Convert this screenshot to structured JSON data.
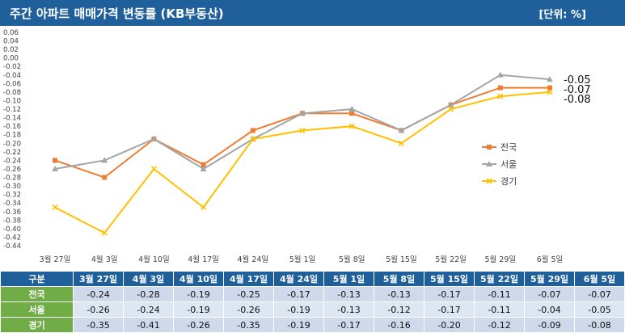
{
  "header": {
    "title": "주간 아파트 매매가격 변동률 (KB부동산)",
    "unit": "[단위: %]"
  },
  "chart_data": {
    "type": "line",
    "categories": [
      "3월 27일",
      "4월 3일",
      "4월 10일",
      "4월 17일",
      "4월 24일",
      "5월 1일",
      "5월 8일",
      "5월 15일",
      "5월 22일",
      "5월 29일",
      "6월 5일"
    ],
    "series": [
      {
        "name": "전국",
        "color": "#ed7d31",
        "marker": "square",
        "values": [
          -0.24,
          -0.28,
          -0.19,
          -0.25,
          -0.17,
          -0.13,
          -0.13,
          -0.17,
          -0.11,
          -0.07,
          -0.07
        ]
      },
      {
        "name": "서울",
        "color": "#a5a5a5",
        "marker": "triangle",
        "values": [
          -0.26,
          -0.24,
          -0.19,
          -0.26,
          -0.19,
          -0.13,
          -0.12,
          -0.17,
          -0.11,
          -0.04,
          -0.05
        ]
      },
      {
        "name": "경기",
        "color": "#ffc000",
        "marker": "x",
        "values": [
          -0.35,
          -0.41,
          -0.26,
          -0.35,
          -0.19,
          -0.17,
          -0.16,
          -0.2,
          -0.12,
          -0.09,
          -0.08
        ]
      }
    ],
    "ylim": [
      -0.44,
      0.06
    ],
    "ytick_step": 0.02,
    "end_labels": [
      "-0.05",
      "-0.07",
      "-0.08"
    ],
    "grid": false,
    "legend_position": "right"
  },
  "table": {
    "header_label": "구분",
    "columns": [
      "3월 27일",
      "4월 3일",
      "4월 10일",
      "4월 17일",
      "4월 24일",
      "5월 1일",
      "5월 8일",
      "5월 15일",
      "5월 22일",
      "5월 29일",
      "6월 5일"
    ],
    "rows": [
      {
        "label": "전국",
        "values": [
          "-0.24",
          "-0.28",
          "-0.19",
          "-0.25",
          "-0.17",
          "-0.13",
          "-0.13",
          "-0.17",
          "-0.11",
          "-0.07",
          "-0.07"
        ]
      },
      {
        "label": "서울",
        "values": [
          "-0.26",
          "-0.24",
          "-0.19",
          "-0.26",
          "-0.19",
          "-0.13",
          "-0.12",
          "-0.17",
          "-0.11",
          "-0.04",
          "-0.05"
        ]
      },
      {
        "label": "경기",
        "values": [
          "-0.35",
          "-0.41",
          "-0.26",
          "-0.35",
          "-0.19",
          "-0.17",
          "-0.16",
          "-0.20",
          "-0.12",
          "-0.09",
          "-0.08"
        ]
      }
    ]
  }
}
